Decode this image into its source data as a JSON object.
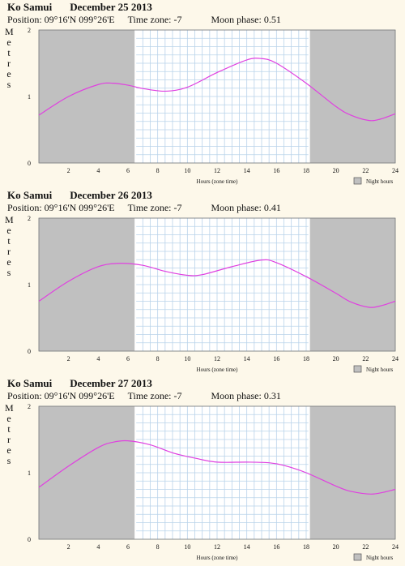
{
  "location": "Ko Samui",
  "position_label": "Position: 09°16'N 099°26'E",
  "timezone_label": "Time zone: -7",
  "ylabel": "Metres",
  "xlabel": "Hours (zone time)",
  "legend_label": "Night hours",
  "colors": {
    "night": "#c0c0c0",
    "grid": "#b9d3ea",
    "curve": "#e040e0",
    "background": "#fdf8ea"
  },
  "chart_data": [
    {
      "type": "line",
      "date": "December 25 2013",
      "moon_label": "Moon phase: 0.51",
      "xlim": [
        0,
        24
      ],
      "ylim": [
        0,
        2
      ],
      "x_ticks": [
        2,
        4,
        6,
        8,
        10,
        12,
        14,
        16,
        18,
        20,
        22,
        24
      ],
      "y_ticks": [
        0,
        1,
        2
      ],
      "night": [
        [
          0,
          6.5
        ],
        [
          18.2,
          24
        ]
      ],
      "series": [
        {
          "x": [
            0,
            2,
            4,
            5,
            6,
            7,
            8.5,
            10,
            12,
            14,
            15,
            16,
            18,
            20,
            21,
            22.2,
            23,
            24
          ],
          "y": [
            0.72,
            1.0,
            1.18,
            1.2,
            1.17,
            1.12,
            1.08,
            1.14,
            1.36,
            1.55,
            1.57,
            1.5,
            1.2,
            0.85,
            0.72,
            0.64,
            0.66,
            0.74
          ]
        }
      ]
    },
    {
      "type": "line",
      "date": "December 26 2013",
      "moon_label": "Moon phase: 0.41",
      "xlim": [
        0,
        24
      ],
      "ylim": [
        0,
        2
      ],
      "x_ticks": [
        2,
        4,
        6,
        8,
        10,
        12,
        14,
        16,
        18,
        20,
        22,
        24
      ],
      "y_ticks": [
        0,
        1,
        2
      ],
      "night": [
        [
          0,
          6.5
        ],
        [
          18.2,
          24
        ]
      ],
      "series": [
        {
          "x": [
            0,
            2,
            4,
            5.5,
            7,
            8.5,
            10,
            11,
            13,
            15,
            16,
            18,
            20,
            21,
            22.2,
            23,
            24
          ],
          "y": [
            0.75,
            1.05,
            1.27,
            1.32,
            1.29,
            1.2,
            1.14,
            1.15,
            1.27,
            1.37,
            1.33,
            1.12,
            0.87,
            0.74,
            0.66,
            0.68,
            0.75
          ]
        }
      ]
    },
    {
      "type": "line",
      "date": "December 27 2013",
      "moon_label": "Moon phase: 0.31",
      "xlim": [
        0,
        24
      ],
      "ylim": [
        0,
        2
      ],
      "x_ticks": [
        2,
        4,
        6,
        8,
        10,
        12,
        14,
        16,
        18,
        20,
        22,
        24
      ],
      "y_ticks": [
        0,
        1,
        2
      ],
      "night": [
        [
          0,
          6.5
        ],
        [
          18.2,
          24
        ]
      ],
      "series": [
        {
          "x": [
            0,
            2,
            4,
            5,
            6,
            7.5,
            9,
            10.5,
            12,
            14,
            15.5,
            16.5,
            18,
            20,
            21,
            22.5,
            24
          ],
          "y": [
            0.78,
            1.1,
            1.38,
            1.46,
            1.48,
            1.42,
            1.3,
            1.22,
            1.16,
            1.16,
            1.15,
            1.11,
            1.0,
            0.8,
            0.72,
            0.68,
            0.75
          ]
        }
      ]
    }
  ]
}
